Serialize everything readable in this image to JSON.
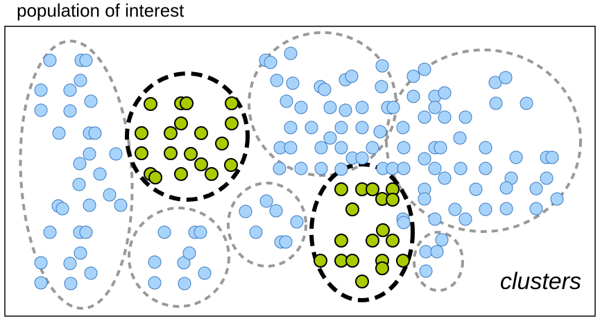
{
  "title": "population of interest",
  "label": "clusters",
  "colors": {
    "unselected_fill": "#a8d4fb",
    "unselected_stroke": "#3a78c0",
    "selected_fill": "#a8cc00",
    "selected_stroke": "#000000",
    "cluster_outline": "#999999",
    "selected_cluster_outline": "#000000",
    "frame": "#000000"
  },
  "clusters": [
    {
      "id": "cluster-1",
      "selected": false
    },
    {
      "id": "cluster-2",
      "selected": true
    },
    {
      "id": "cluster-3",
      "selected": false
    },
    {
      "id": "cluster-4",
      "selected": false
    },
    {
      "id": "cluster-5",
      "selected": false
    },
    {
      "id": "cluster-6",
      "selected": false
    },
    {
      "id": "cluster-7",
      "selected": true
    },
    {
      "id": "cluster-8",
      "selected": false
    }
  ]
}
